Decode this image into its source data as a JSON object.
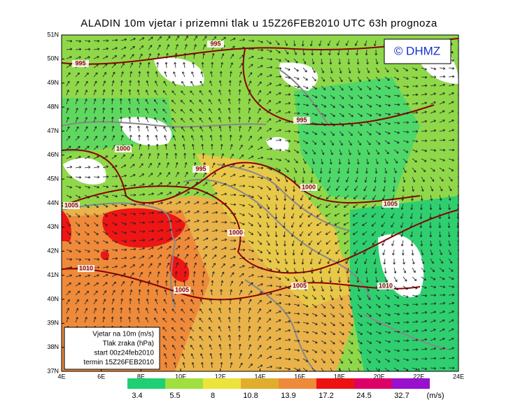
{
  "title": "ALADIN 10m vjetar i prizemni tlak u 15Z26FEB2010 UTC 63h prognoza",
  "logo": "© DHMZ",
  "lat_labels": [
    "51N",
    "50N",
    "49N",
    "48N",
    "47N",
    "46N",
    "45N",
    "44N",
    "43N",
    "42N",
    "41N",
    "40N",
    "39N",
    "38N",
    "37N"
  ],
  "lon_labels": [
    "4E",
    "6E",
    "8E",
    "10E",
    "12E",
    "14E",
    "16E",
    "18E",
    "20E",
    "22E",
    "24E"
  ],
  "isobar_labels": [
    "995",
    "995",
    "995",
    "1000",
    "995",
    "1000",
    "1005",
    "1005",
    "1000",
    "1010",
    "1005",
    "1005",
    "1010"
  ],
  "legend": [
    "Vjetar na 10m (m/s)",
    "Tlak zraka (hPa)",
    "start 00z24feb2010",
    "termin 15Z26FEB2010"
  ],
  "colorbar": {
    "labels": [
      3.4,
      5.5,
      8,
      10.8,
      13.9,
      17.2,
      24.5,
      32.7
    ],
    "unit": "(m/s)",
    "colors": [
      "#1fcf73",
      "#9fe03f",
      "#ece43a",
      "#e0ae2c",
      "#ee8a3a",
      "#ee1111",
      "#dd0066",
      "#9911cc"
    ]
  }
}
